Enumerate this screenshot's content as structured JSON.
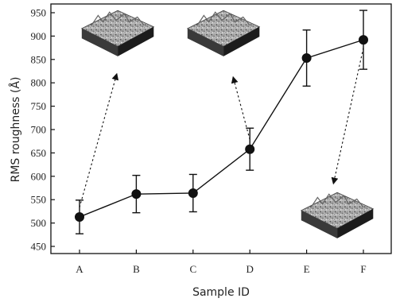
{
  "chart_data": {
    "type": "line",
    "xlabel": "Sample ID",
    "ylabel": "RMS roughness (Å)",
    "categories": [
      "A",
      "B",
      "C",
      "D",
      "E",
      "F"
    ],
    "values": [
      513,
      562,
      564,
      658,
      853,
      892
    ],
    "errors": [
      36,
      40,
      40,
      45,
      60,
      63
    ],
    "ylim": [
      450,
      950
    ],
    "yticks": [
      450,
      500,
      550,
      600,
      650,
      700,
      750,
      800,
      850,
      900,
      950
    ],
    "grid": false,
    "insets": [
      {
        "category": "A",
        "image": "afm-surface-topography"
      },
      {
        "category": "D",
        "image": "afm-surface-topography"
      },
      {
        "category": "F",
        "image": "afm-surface-topography"
      }
    ]
  }
}
